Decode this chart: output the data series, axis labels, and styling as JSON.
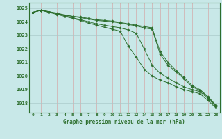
{
  "background_color": "#c8e8e8",
  "grid_color": "#b0c8c8",
  "grid_color_minor": "#d4b8b8",
  "line_color": "#2d6e2d",
  "xlabel": "Graphe pression niveau de la mer (hPa)",
  "ylim": [
    1017.3,
    1025.4
  ],
  "yticks": [
    1018,
    1019,
    1020,
    1021,
    1022,
    1023,
    1024,
    1025
  ],
  "series": [
    [
      1024.7,
      1024.85,
      1024.7,
      1024.55,
      1024.4,
      1024.25,
      1024.1,
      1023.9,
      1023.75,
      1023.6,
      1023.45,
      1023.3,
      1022.2,
      1021.4,
      1020.5,
      1020.0,
      1019.7,
      1019.5,
      1019.2,
      1019.0,
      1018.85,
      1018.7,
      1018.2,
      1017.65
    ],
    [
      1024.7,
      1024.85,
      1024.75,
      1024.6,
      1024.45,
      1024.3,
      1024.15,
      1024.0,
      1023.85,
      1023.75,
      1023.65,
      1023.55,
      1023.4,
      1023.15,
      1022.0,
      1020.8,
      1020.2,
      1019.85,
      1019.5,
      1019.2,
      1019.0,
      1018.85,
      1018.35,
      1017.75
    ],
    [
      1024.7,
      1024.85,
      1024.75,
      1024.6,
      1024.5,
      1024.4,
      1024.3,
      1024.2,
      1024.1,
      1024.05,
      1024.0,
      1023.9,
      1023.8,
      1023.7,
      1023.55,
      1023.45,
      1021.6,
      1020.8,
      1020.3,
      1019.8,
      1019.2,
      1018.95,
      1018.45,
      1017.8
    ],
    [
      1024.7,
      1024.85,
      1024.75,
      1024.65,
      1024.5,
      1024.4,
      1024.35,
      1024.25,
      1024.15,
      1024.1,
      1024.05,
      1023.95,
      1023.85,
      1023.75,
      1023.65,
      1023.55,
      1021.8,
      1021.0,
      1020.4,
      1019.9,
      1019.3,
      1019.0,
      1018.5,
      1017.85
    ]
  ]
}
